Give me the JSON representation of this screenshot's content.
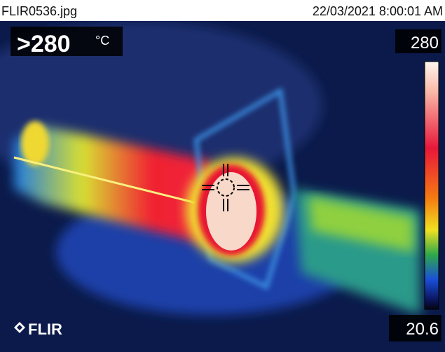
{
  "header": {
    "filename": "FLIR0536.jpg",
    "timestamp": "22/03/2021 8:00:01 AM"
  },
  "readout": {
    "value": ">280",
    "unit": "°C"
  },
  "scale": {
    "max": "280",
    "min": "20.6"
  },
  "logo": "FLIR"
}
